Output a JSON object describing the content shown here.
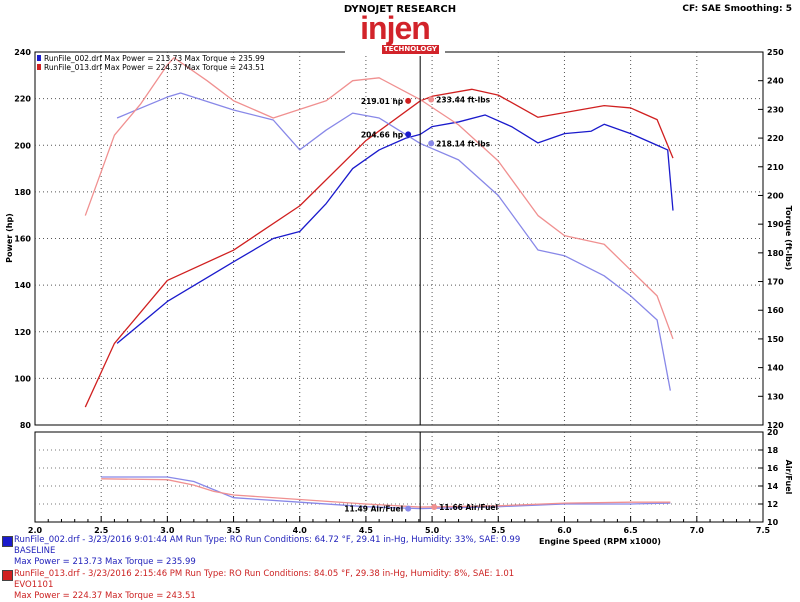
{
  "header": {
    "title": "DYNOJET RESEARCH",
    "settings": "CF: SAE  Smoothing: 5",
    "logo": "injen TECHNOLOGY"
  },
  "colors": {
    "run002_power": "#1a1acc",
    "run002_torque": "#8888e8",
    "run013_power": "#d02020",
    "run013_torque": "#f09090"
  },
  "chart_data": [
    {
      "type": "line",
      "xlabel": "Engine Speed (RPM x1000)",
      "ylabel": "Power (hp)",
      "y2label": "Torque (ft-lbs)",
      "xlim": [
        2.0,
        7.5
      ],
      "ylim": [
        80,
        240
      ],
      "y2lim": [
        120,
        250
      ],
      "grid": true,
      "xticks": [
        "2.0",
        "2.5",
        "3.0",
        "3.5",
        "4.0",
        "4.5",
        "5.0",
        "5.5",
        "6.0",
        "6.5",
        "7.0",
        "7.5"
      ],
      "yticks": [
        "80",
        "100",
        "120",
        "140",
        "160",
        "180",
        "200",
        "220",
        "240"
      ],
      "y2ticks": [
        "120",
        "130",
        "140",
        "150",
        "160",
        "170",
        "180",
        "190",
        "200",
        "210",
        "220",
        "230",
        "240",
        "250"
      ],
      "legend": [
        "RunFile_002.drf Max Power = 213.73    Max Torque = 235.99",
        "RunFile_013.drf Max Power = 224.37    Max Torque = 243.51"
      ],
      "cursor_x": 4.91,
      "series": [
        {
          "name": "RunFile_002.drf Power",
          "axis": "left",
          "x": [
            2.62,
            3.0,
            3.5,
            3.8,
            4.0,
            4.2,
            4.4,
            4.6,
            4.8,
            4.91,
            5.0,
            5.2,
            5.4,
            5.6,
            5.8,
            6.0,
            6.2,
            6.3,
            6.5,
            6.7,
            6.78,
            6.82
          ],
          "y": [
            115,
            133,
            150,
            160,
            163,
            175,
            190,
            198,
            203,
            204.66,
            208,
            210,
            213,
            208,
            201,
            205,
            206,
            209,
            205,
            200,
            198,
            172
          ]
        },
        {
          "name": "RunFile_013.drf Power",
          "axis": "left",
          "x": [
            2.38,
            2.6,
            3.0,
            3.5,
            4.0,
            4.5,
            4.91,
            5.0,
            5.3,
            5.5,
            5.8,
            6.0,
            6.3,
            6.5,
            6.7,
            6.82
          ],
          "y": [
            87.7,
            115,
            142,
            155,
            174,
            202,
            219.01,
            221,
            224,
            221.5,
            212,
            214,
            217,
            216,
            211,
            194.5
          ]
        },
        {
          "name": "RunFile_002.drf Torque",
          "axis": "right",
          "x": [
            2.62,
            3.0,
            3.1,
            3.5,
            3.8,
            4.0,
            4.2,
            4.4,
            4.6,
            4.91,
            5.2,
            5.5,
            5.8,
            6.0,
            6.3,
            6.5,
            6.7,
            6.8
          ],
          "y": [
            227,
            234.3,
            235.7,
            229.8,
            226.3,
            215.9,
            222.8,
            228.7,
            227,
            218.14,
            212.4,
            200,
            181,
            179,
            172,
            165,
            156.6,
            132
          ]
        },
        {
          "name": "RunFile_013.drf Torque",
          "axis": "right",
          "x": [
            2.38,
            2.6,
            2.8,
            3.0,
            3.05,
            3.3,
            3.5,
            3.8,
            4.2,
            4.4,
            4.6,
            4.91,
            5.2,
            5.5,
            5.8,
            6.0,
            6.3,
            6.5,
            6.7,
            6.82
          ],
          "y": [
            193,
            221,
            232,
            245.5,
            248,
            240,
            233,
            227,
            233,
            240,
            241,
            233.44,
            224.6,
            212,
            193,
            186,
            183,
            174,
            165,
            150
          ]
        }
      ],
      "markers": [
        {
          "series": 1,
          "label": "219.01 hp",
          "x": 4.91,
          "y": 219.01
        },
        {
          "series": 0,
          "label": "204.66 hp",
          "x": 4.91,
          "y": 204.66
        },
        {
          "series": 3,
          "label": "233.44 ft-lbs",
          "x": 4.91,
          "y": 233.44
        },
        {
          "series": 2,
          "label": "218.14 ft-lbs",
          "x": 4.91,
          "y": 218.14
        }
      ]
    },
    {
      "type": "line",
      "ylabel": "Air/Fuel",
      "ylim": [
        10,
        20
      ],
      "yticks": [
        "10",
        "12",
        "14",
        "16",
        "18",
        "20"
      ],
      "grid": true,
      "series": [
        {
          "name": "RunFile_002.drf Air/Fuel",
          "x": [
            2.5,
            3.0,
            3.2,
            3.35,
            3.5,
            4.0,
            4.5,
            4.91,
            5.5,
            6.0,
            6.5,
            6.8
          ],
          "y": [
            15,
            15,
            14.5,
            13.6,
            12.7,
            12.2,
            11.7,
            11.49,
            11.7,
            12.0,
            12.0,
            12.1
          ]
        },
        {
          "name": "RunFile_013.drf Air/Fuel",
          "x": [
            2.5,
            3.0,
            3.2,
            3.35,
            3.5,
            4.0,
            4.5,
            4.91,
            5.5,
            6.0,
            6.5,
            6.8
          ],
          "y": [
            14.8,
            14.7,
            14.1,
            13.4,
            13.0,
            12.5,
            12.0,
            11.66,
            11.8,
            12.1,
            12.2,
            12.2
          ]
        }
      ],
      "markers": [
        {
          "series": 0,
          "label": "11.49 Air/Fuel",
          "x": 4.91,
          "y": 11.49
        },
        {
          "series": 1,
          "label": "11.66 Air/Fuel",
          "x": 4.91,
          "y": 11.66
        }
      ]
    }
  ],
  "footer": [
    {
      "line1": "RunFile_002.drf - 3/23/2016 9:01:44 AM  Run Type: RO  Run Conditions: 64.72 °F, 29.41 in-Hg,  Humidity:  33%, SAE: 0.99",
      "line2": "BASELINE",
      "line3": "Max Power = 213.73  Max Torque = 235.99"
    },
    {
      "line1": "RunFile_013.drf - 3/23/2016 2:15:46 PM  Run Type: RO  Run Conditions: 84.05 °F, 29.38 in-Hg,  Humidity:  8%, SAE: 1.01",
      "line2": "EVO1101",
      "line3": "Max Power = 224.37  Max Torque = 243.51"
    }
  ]
}
